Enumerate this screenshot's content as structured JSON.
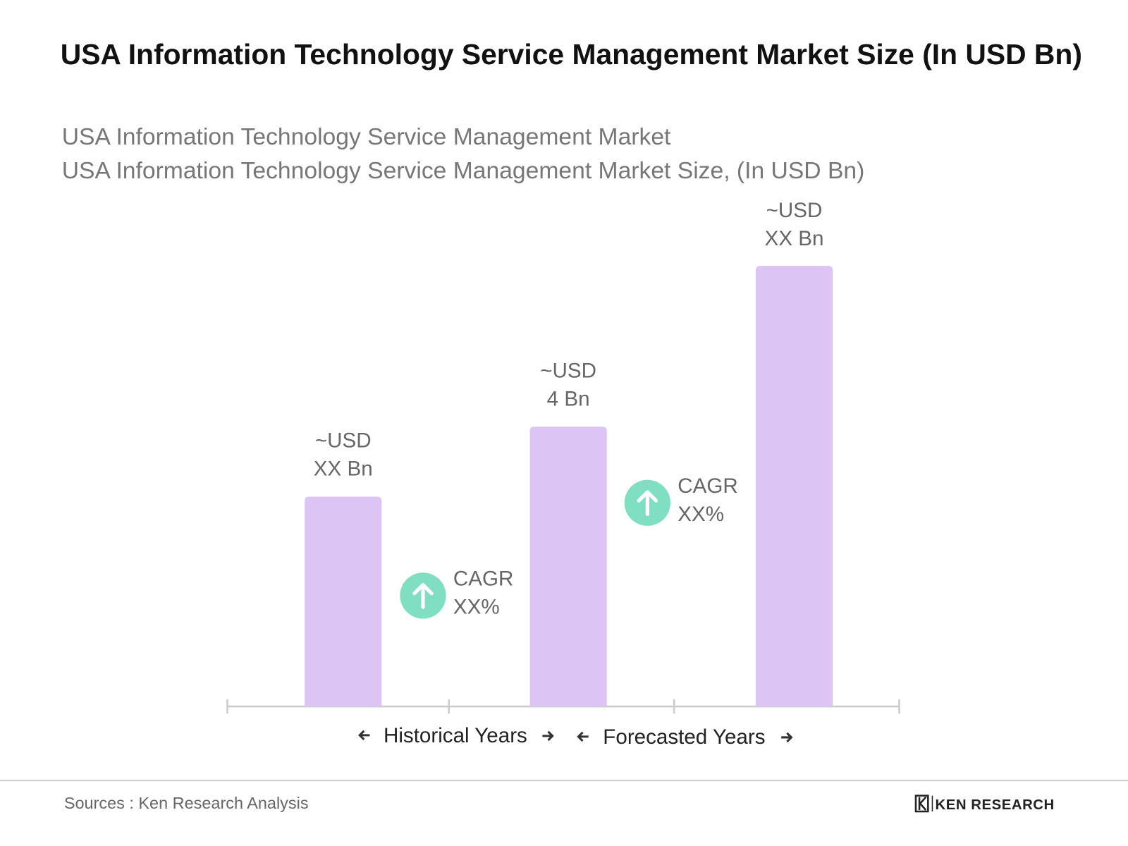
{
  "chart_data": {
    "type": "bar",
    "title": "USA Information Technology Service Management Market Size (In USD Bn)",
    "subtitle": "USA Information Technology Service Management Market",
    "subtitle2": "USA Information Technology Service Management Market Size, (In USD Bn)",
    "categories": [
      null,
      null,
      null
    ],
    "values": [
      3.0,
      4,
      6.3
    ],
    "value_labels": [
      "~USD\nXX Bn",
      "~USD\n4 Bn",
      "~USD\nXX Bn"
    ],
    "color": "#dcc4f5",
    "ylim": [
      0,
      7.5
    ],
    "x_groups": [
      "Historical Years",
      "Forecasted Years"
    ],
    "annotations": [
      "CAGR\nXX%",
      "CAGR\nXX%"
    ],
    "annotation_color": "#80dfc0"
  },
  "source": "Sources : Ken Research Analysis",
  "logo": "KEN RESEARCH"
}
